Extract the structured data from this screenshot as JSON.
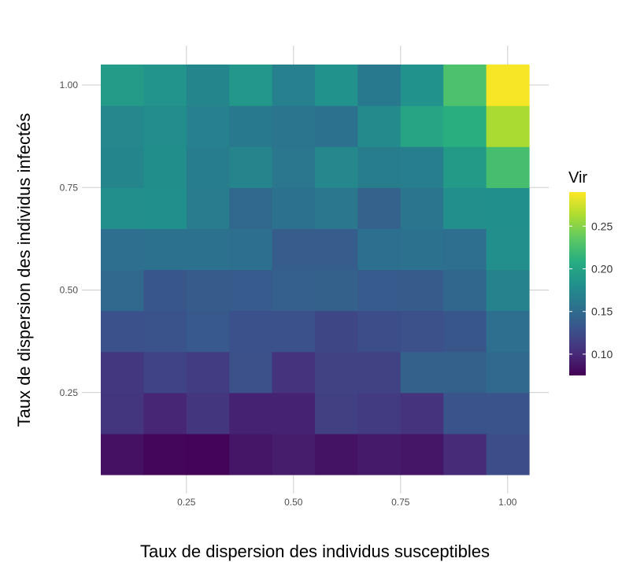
{
  "chart_data": {
    "type": "heatmap",
    "xlabel": "Taux de dispersion des individus susceptibles",
    "ylabel": "Taux de dispersion des individus infectés",
    "x_range": [
      0.05,
      1.05
    ],
    "y_range": [
      0.05,
      1.05
    ],
    "x_ticks": [
      0.25,
      0.5,
      0.75,
      1.0
    ],
    "x_tick_labels": [
      "0.25",
      "0.50",
      "0.75",
      "1.00"
    ],
    "y_ticks": [
      0.25,
      0.5,
      0.75,
      1.0
    ],
    "y_tick_labels": [
      "0.25",
      "0.50",
      "0.75",
      "1.00"
    ],
    "grid": true,
    "x": [
      0.1,
      0.2,
      0.3,
      0.4,
      0.5,
      0.6,
      0.7,
      0.8,
      0.9,
      1.0
    ],
    "y": [
      0.1,
      0.2,
      0.3,
      0.4,
      0.5,
      0.6,
      0.7,
      0.8,
      0.9,
      1.0
    ],
    "values": [
      [
        0.085,
        0.078,
        0.077,
        0.088,
        0.092,
        0.086,
        0.09,
        0.088,
        0.1,
        0.125
      ],
      [
        0.108,
        0.098,
        0.108,
        0.096,
        0.096,
        0.116,
        0.112,
        0.106,
        0.13,
        0.13
      ],
      [
        0.11,
        0.118,
        0.113,
        0.127,
        0.106,
        0.117,
        0.117,
        0.141,
        0.141,
        0.148
      ],
      [
        0.128,
        0.13,
        0.135,
        0.128,
        0.128,
        0.12,
        0.126,
        0.127,
        0.132,
        0.152
      ],
      [
        0.148,
        0.132,
        0.137,
        0.136,
        0.14,
        0.141,
        0.136,
        0.137,
        0.146,
        0.17
      ],
      [
        0.152,
        0.155,
        0.155,
        0.153,
        0.138,
        0.138,
        0.153,
        0.155,
        0.152,
        0.181
      ],
      [
        0.181,
        0.182,
        0.164,
        0.148,
        0.155,
        0.16,
        0.142,
        0.158,
        0.181,
        0.182
      ],
      [
        0.172,
        0.18,
        0.165,
        0.171,
        0.16,
        0.175,
        0.165,
        0.167,
        0.191,
        0.225
      ],
      [
        0.175,
        0.178,
        0.168,
        0.162,
        0.158,
        0.155,
        0.176,
        0.2,
        0.21,
        0.262
      ],
      [
        0.192,
        0.185,
        0.172,
        0.188,
        0.168,
        0.183,
        0.162,
        0.183,
        0.228,
        0.288
      ]
    ],
    "color_scale": "viridis",
    "legend": {
      "title": "Vir",
      "placement": "right",
      "min": 0.075,
      "max": 0.29,
      "ticks": [
        0.1,
        0.15,
        0.2,
        0.25
      ],
      "tick_labels": [
        "0.10",
        "0.15",
        "0.20",
        "0.25"
      ]
    }
  }
}
